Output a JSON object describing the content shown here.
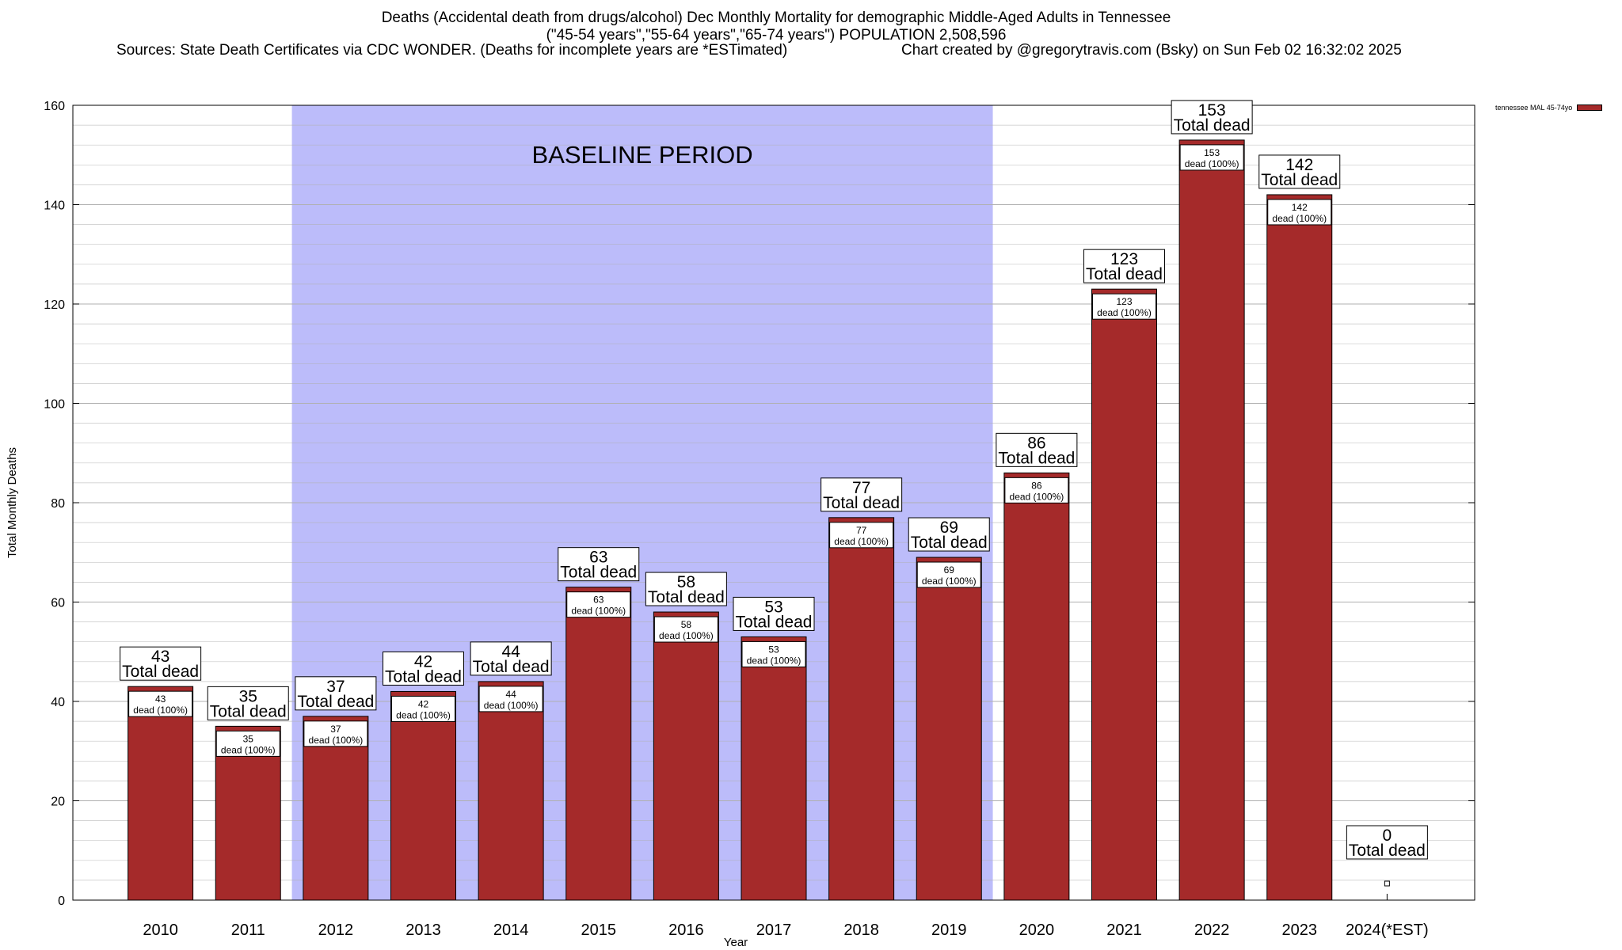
{
  "colors": {
    "bar": "#a52a2a",
    "baseline_shade": "#bcbcfa",
    "grid": "#b0b0b0",
    "text": "#000000",
    "box_fill": "#ffffff"
  },
  "chart_data": {
    "type": "bar",
    "title": "Deaths (Accidental death from drugs/alcohol) Dec Monthly Mortality for demographic Middle-Aged Adults in Tennessee",
    "subtitle": "(\"45-54 years\",\"55-64 years\",\"65-74 years\") POPULATION 2,508,596",
    "sources": "Sources: State Death Certificates via CDC WONDER. (Deaths for incomplete years are *ESTimated)",
    "credit": "Chart created by @gregorytravis.com (Bsky) on Sun Feb 02 16:32:02 2025",
    "xlabel": "Year",
    "ylabel": "Total Monthly Deaths",
    "ylim": [
      0,
      160
    ],
    "yticks": [
      0,
      20,
      40,
      60,
      80,
      100,
      120,
      140,
      160
    ],
    "y_minor_step": 4,
    "grid": true,
    "legend": {
      "position": "top-right",
      "label": "tennessee MAL 45-74yo"
    },
    "categories": [
      "2010",
      "2011",
      "2012",
      "2013",
      "2014",
      "2015",
      "2016",
      "2017",
      "2018",
      "2019",
      "2020",
      "2021",
      "2022",
      "2023",
      "2024(*EST)"
    ],
    "series": [
      {
        "name": "tennessee MAL 45-74yo",
        "values": [
          43,
          35,
          37,
          42,
          44,
          63,
          58,
          53,
          77,
          69,
          86,
          123,
          153,
          142,
          0
        ]
      }
    ],
    "total_label": "Total dead",
    "inner_label": "dead (100%)",
    "baseline": {
      "label": "BASELINE PERIOD",
      "start": "2012",
      "end": "2019"
    }
  }
}
